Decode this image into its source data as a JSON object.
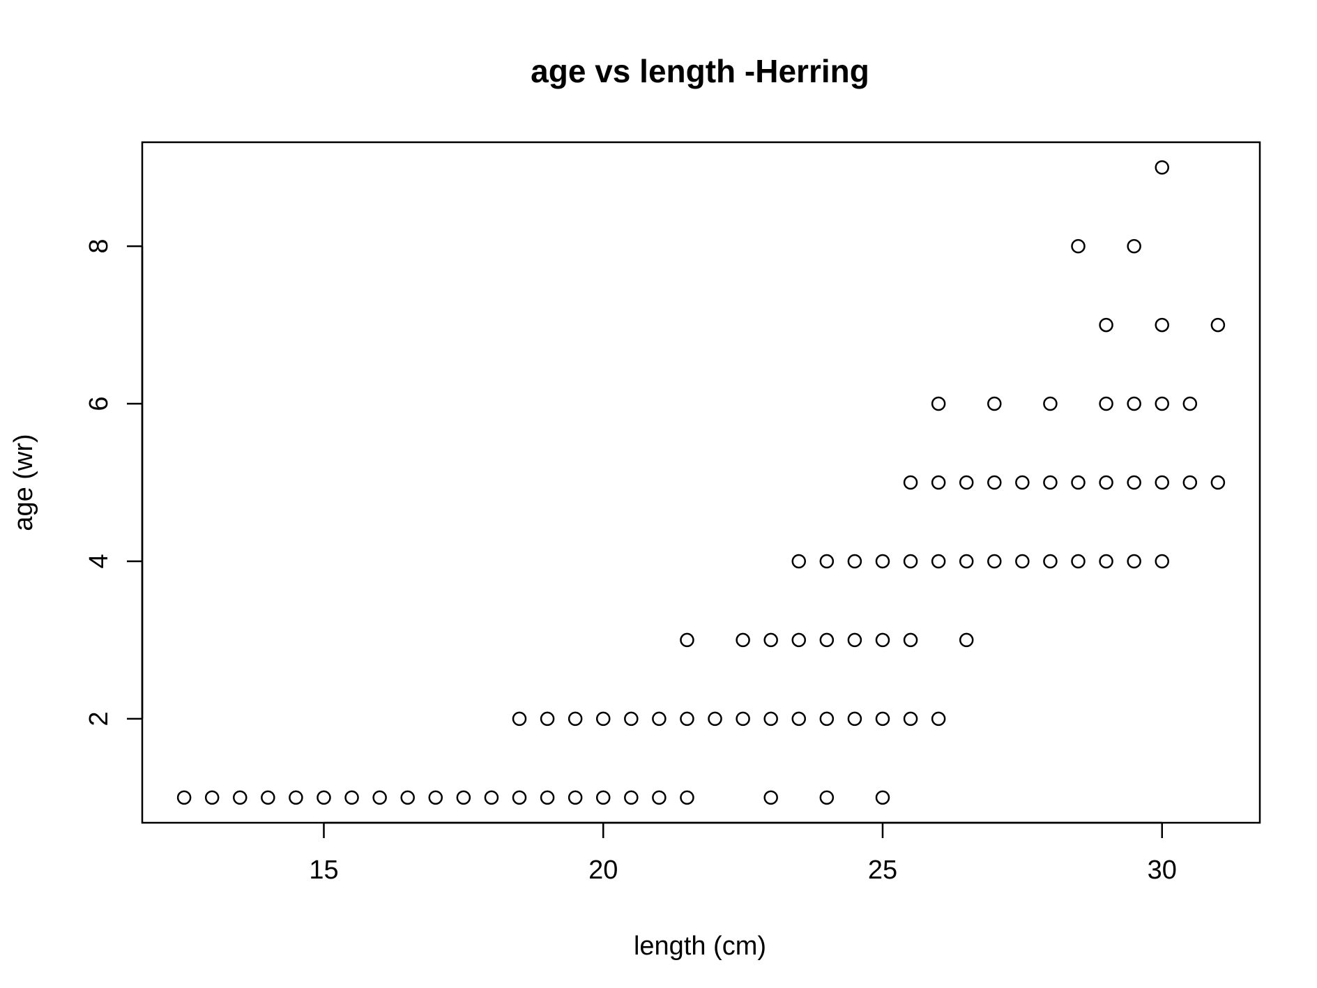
{
  "chart_data": {
    "type": "scatter",
    "title": "age vs length -Herring",
    "xlabel": "length (cm)",
    "ylabel": "age (wr)",
    "xlim": [
      11.75,
      31.75
    ],
    "ylim": [
      0.68,
      9.32
    ],
    "xticks": [
      15,
      20,
      25,
      30
    ],
    "yticks": [
      2,
      4,
      6,
      8
    ],
    "grid": false,
    "legend": "none",
    "marker": "open-circle",
    "color": "#000000",
    "points": [
      {
        "x": 12.5,
        "y": 1
      },
      {
        "x": 13,
        "y": 1
      },
      {
        "x": 13.5,
        "y": 1
      },
      {
        "x": 14,
        "y": 1
      },
      {
        "x": 14.5,
        "y": 1
      },
      {
        "x": 15,
        "y": 1
      },
      {
        "x": 15.5,
        "y": 1
      },
      {
        "x": 16,
        "y": 1
      },
      {
        "x": 16.5,
        "y": 1
      },
      {
        "x": 17,
        "y": 1
      },
      {
        "x": 17.5,
        "y": 1
      },
      {
        "x": 18,
        "y": 1
      },
      {
        "x": 18.5,
        "y": 1
      },
      {
        "x": 19,
        "y": 1
      },
      {
        "x": 19.5,
        "y": 1
      },
      {
        "x": 20,
        "y": 1
      },
      {
        "x": 20.5,
        "y": 1
      },
      {
        "x": 21,
        "y": 1
      },
      {
        "x": 21.5,
        "y": 1
      },
      {
        "x": 23,
        "y": 1
      },
      {
        "x": 24,
        "y": 1
      },
      {
        "x": 25,
        "y": 1
      },
      {
        "x": 18.5,
        "y": 2
      },
      {
        "x": 19,
        "y": 2
      },
      {
        "x": 19.5,
        "y": 2
      },
      {
        "x": 20,
        "y": 2
      },
      {
        "x": 20.5,
        "y": 2
      },
      {
        "x": 21,
        "y": 2
      },
      {
        "x": 21.5,
        "y": 2
      },
      {
        "x": 22,
        "y": 2
      },
      {
        "x": 22.5,
        "y": 2
      },
      {
        "x": 23,
        "y": 2
      },
      {
        "x": 23.5,
        "y": 2
      },
      {
        "x": 24,
        "y": 2
      },
      {
        "x": 24.5,
        "y": 2
      },
      {
        "x": 25,
        "y": 2
      },
      {
        "x": 25.5,
        "y": 2
      },
      {
        "x": 26,
        "y": 2
      },
      {
        "x": 21.5,
        "y": 3
      },
      {
        "x": 22.5,
        "y": 3
      },
      {
        "x": 23,
        "y": 3
      },
      {
        "x": 23.5,
        "y": 3
      },
      {
        "x": 24,
        "y": 3
      },
      {
        "x": 24.5,
        "y": 3
      },
      {
        "x": 25,
        "y": 3
      },
      {
        "x": 25.5,
        "y": 3
      },
      {
        "x": 26.5,
        "y": 3
      },
      {
        "x": 23.5,
        "y": 4
      },
      {
        "x": 24,
        "y": 4
      },
      {
        "x": 24.5,
        "y": 4
      },
      {
        "x": 25,
        "y": 4
      },
      {
        "x": 25.5,
        "y": 4
      },
      {
        "x": 26,
        "y": 4
      },
      {
        "x": 26.5,
        "y": 4
      },
      {
        "x": 27,
        "y": 4
      },
      {
        "x": 27.5,
        "y": 4
      },
      {
        "x": 28,
        "y": 4
      },
      {
        "x": 28.5,
        "y": 4
      },
      {
        "x": 29,
        "y": 4
      },
      {
        "x": 29.5,
        "y": 4
      },
      {
        "x": 30,
        "y": 4
      },
      {
        "x": 25.5,
        "y": 5
      },
      {
        "x": 26,
        "y": 5
      },
      {
        "x": 26.5,
        "y": 5
      },
      {
        "x": 27,
        "y": 5
      },
      {
        "x": 27.5,
        "y": 5
      },
      {
        "x": 28,
        "y": 5
      },
      {
        "x": 28.5,
        "y": 5
      },
      {
        "x": 29,
        "y": 5
      },
      {
        "x": 29.5,
        "y": 5
      },
      {
        "x": 30,
        "y": 5
      },
      {
        "x": 30.5,
        "y": 5
      },
      {
        "x": 31,
        "y": 5
      },
      {
        "x": 26,
        "y": 6
      },
      {
        "x": 27,
        "y": 6
      },
      {
        "x": 28,
        "y": 6
      },
      {
        "x": 29,
        "y": 6
      },
      {
        "x": 29.5,
        "y": 6
      },
      {
        "x": 30,
        "y": 6
      },
      {
        "x": 30.5,
        "y": 6
      },
      {
        "x": 29,
        "y": 7
      },
      {
        "x": 30,
        "y": 7
      },
      {
        "x": 31,
        "y": 7
      },
      {
        "x": 28.5,
        "y": 8
      },
      {
        "x": 29.5,
        "y": 8
      },
      {
        "x": 30,
        "y": 9
      }
    ]
  }
}
